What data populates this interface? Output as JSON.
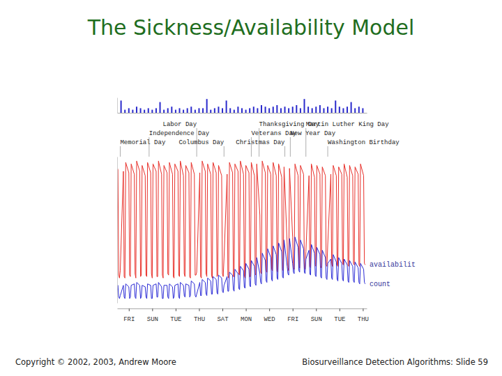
{
  "title": "The Sickness/Availability Model",
  "footer_left": "Copyright © 2002, 2003, Andrew Moore",
  "footer_right": "Biosurveillance Detection Algorithms: Slide 59",
  "chart_data": [
    {
      "type": "bar",
      "xlim": [
        0,
        320
      ],
      "ylim": [
        0,
        10
      ],
      "xticks": [],
      "yticks": [],
      "tick_labels": false,
      "color": "#2a2acc",
      "x": [
        0,
        5,
        10,
        15,
        20,
        25,
        30,
        35,
        40,
        45,
        50,
        55,
        60,
        65,
        70,
        75,
        80,
        85,
        90,
        95,
        100,
        105,
        110,
        115,
        120,
        125,
        130,
        135,
        140,
        145,
        150,
        155,
        160,
        165,
        170,
        175,
        180,
        185,
        190,
        195,
        200,
        205,
        210,
        215,
        220,
        225,
        230,
        235,
        240,
        245,
        250,
        255,
        260,
        265,
        270,
        275,
        280,
        285,
        290,
        295,
        300,
        305,
        310,
        315
      ],
      "values": [
        3,
        8,
        2,
        3,
        2,
        4,
        3,
        2,
        3,
        2,
        3,
        7,
        2,
        3,
        4,
        2,
        3,
        2,
        3,
        4,
        2,
        3,
        3,
        9,
        2,
        3,
        4,
        3,
        8,
        3,
        2,
        4,
        3,
        2,
        3,
        4,
        3,
        5,
        4,
        3,
        4,
        5,
        3,
        4,
        3,
        4,
        5,
        3,
        9,
        4,
        3,
        4,
        5,
        3,
        4,
        3,
        8,
        4,
        3,
        4,
        7,
        3,
        4,
        3
      ]
    },
    {
      "type": "line",
      "xlim": [
        0,
        320
      ],
      "ylim": [
        0,
        100
      ],
      "yticks": [],
      "tick_labels": "x",
      "xticks": [
        {
          "value": 15,
          "label": "FRI"
        },
        {
          "value": 45,
          "label": "SUN"
        },
        {
          "value": 75,
          "label": "TUE"
        },
        {
          "value": 105,
          "label": "THU"
        },
        {
          "value": 135,
          "label": "SAT"
        },
        {
          "value": 165,
          "label": "MON"
        },
        {
          "value": 195,
          "label": "WED"
        },
        {
          "value": 225,
          "label": "FRI"
        },
        {
          "value": 255,
          "label": "SUN"
        },
        {
          "value": 285,
          "label": "TUE"
        },
        {
          "value": 315,
          "label": "THU"
        }
      ],
      "x": [
        0,
        1,
        2,
        3,
        4,
        8,
        9,
        10,
        11,
        15,
        16,
        17,
        18,
        22,
        23,
        24,
        25,
        29,
        30,
        31,
        32,
        36,
        37,
        38,
        39,
        43,
        44,
        45,
        46,
        50,
        51,
        52,
        53,
        57,
        58,
        59,
        60,
        64,
        65,
        66,
        67,
        71,
        72,
        73,
        74,
        78,
        79,
        80,
        81,
        85,
        86,
        87,
        88,
        92,
        93,
        94,
        95,
        99,
        100,
        101,
        102,
        106,
        107,
        108,
        109,
        113,
        114,
        115,
        116,
        120,
        121,
        122,
        123,
        127,
        128,
        129,
        130,
        134,
        135,
        136,
        137,
        141,
        142,
        143,
        144,
        148,
        149,
        150,
        151,
        155,
        156,
        157,
        158,
        162,
        163,
        164,
        165,
        169,
        170,
        171,
        172,
        176,
        177,
        178,
        179,
        183,
        184,
        185,
        186,
        190,
        191,
        192,
        193,
        197,
        198,
        199,
        200,
        204,
        205,
        206,
        207,
        211,
        212,
        213,
        214,
        218,
        219,
        220,
        221,
        225,
        226,
        227,
        228,
        232,
        233,
        234,
        235,
        239,
        240,
        241,
        242,
        246,
        247,
        248,
        249,
        253,
        254,
        255,
        256,
        260,
        261,
        262,
        263,
        267,
        268,
        269,
        270,
        274,
        275,
        276,
        277,
        281,
        282,
        283,
        284,
        288,
        289,
        290,
        291,
        295,
        296,
        297,
        298,
        302,
        303,
        304,
        305,
        309,
        310,
        311,
        312,
        316,
        317,
        318
      ],
      "series": [
        {
          "name": "availabilit",
          "color": "#e8302a",
          "values": [
            93,
            91,
            19,
            17,
            22,
            90,
            18,
            17,
            96,
            89,
            19,
            18,
            95,
            88,
            20,
            17,
            97,
            90,
            18,
            19,
            94,
            87,
            19,
            18,
            96,
            89,
            20,
            17,
            95,
            90,
            18,
            18,
            97,
            88,
            19,
            17,
            94,
            89,
            20,
            19,
            96,
            88,
            18,
            17,
            95,
            90,
            19,
            18,
            97,
            87,
            20,
            18,
            94,
            89,
            18,
            17,
            96,
            88,
            19,
            19,
            21,
            89,
            18,
            17,
            97,
            90,
            20,
            18,
            95,
            88,
            19,
            17,
            96,
            89,
            18,
            19,
            94,
            87,
            20,
            18,
            30,
            88,
            19,
            17,
            96,
            89,
            18,
            18,
            95,
            90,
            20,
            19,
            97,
            88,
            19,
            17,
            94,
            89,
            18,
            18,
            96,
            87,
            20,
            19,
            95,
            60,
            21,
            20,
            97,
            89,
            22,
            21,
            94,
            88,
            23,
            22,
            96,
            87,
            22,
            21,
            95,
            86,
            23,
            22,
            93,
            40,
            24,
            22,
            92,
            45,
            24,
            23,
            95,
            87,
            25,
            24,
            94,
            88,
            24,
            23,
            35,
            87,
            25,
            24,
            95,
            86,
            26,
            25,
            94,
            88,
            25,
            24,
            93,
            87,
            26,
            25,
            40,
            88,
            27,
            25,
            94,
            87,
            26,
            25,
            93,
            88,
            27,
            26,
            95,
            86,
            26,
            25,
            94,
            87,
            27,
            26,
            93,
            88,
            26,
            25,
            95,
            87,
            27,
            26
          ]
        },
        {
          "name": "count",
          "color": "#2b2bd6",
          "values": [
            11,
            12,
            4,
            3,
            5,
            12,
            4,
            3,
            13,
            11,
            3,
            4,
            12,
            13,
            4,
            3,
            14,
            12,
            3,
            4,
            12,
            11,
            4,
            3,
            13,
            12,
            3,
            3,
            12,
            13,
            4,
            4,
            14,
            11,
            3,
            3,
            12,
            12,
            4,
            3,
            13,
            11,
            3,
            4,
            12,
            13,
            4,
            3,
            14,
            12,
            5,
            4,
            13,
            12,
            4,
            5,
            15,
            13,
            5,
            4,
            6,
            14,
            5,
            5,
            16,
            14,
            6,
            5,
            17,
            15,
            6,
            6,
            18,
            16,
            7,
            6,
            19,
            17,
            8,
            7,
            12,
            18,
            8,
            8,
            21,
            19,
            9,
            8,
            23,
            20,
            10,
            9,
            25,
            22,
            11,
            10,
            27,
            23,
            12,
            11,
            29,
            25,
            13,
            12,
            31,
            20,
            14,
            13,
            34,
            29,
            15,
            14,
            37,
            31,
            16,
            15,
            39,
            33,
            17,
            16,
            41,
            35,
            18,
            17,
            43,
            25,
            20,
            19,
            44,
            27,
            21,
            20,
            45,
            38,
            22,
            21,
            43,
            37,
            21,
            20,
            30,
            36,
            20,
            19,
            40,
            34,
            19,
            18,
            38,
            33,
            18,
            17,
            36,
            31,
            17,
            16,
            27,
            30,
            17,
            16,
            33,
            28,
            16,
            15,
            31,
            27,
            16,
            15,
            30,
            26,
            15,
            14,
            29,
            25,
            15,
            14,
            28,
            24,
            14,
            13,
            27,
            23,
            14,
            13
          ]
        }
      ],
      "annotations": [
        {
          "text": "Memorial Day",
          "x": 4
        },
        {
          "text": "Independence Day",
          "x": 41
        },
        {
          "text": "Labor Day",
          "x": 102
        },
        {
          "text": "Columbus Day",
          "x": 137
        },
        {
          "text": "Veterans Day",
          "x": 172
        },
        {
          "text": "Thanksgiving Day",
          "x": 182
        },
        {
          "text": "Christmas Day",
          "x": 215
        },
        {
          "text": "New Year Day",
          "x": 222
        },
        {
          "text": "Martin Luther King Day",
          "x": 242
        },
        {
          "text": "Washington Birthday",
          "x": 270
        }
      ]
    }
  ]
}
